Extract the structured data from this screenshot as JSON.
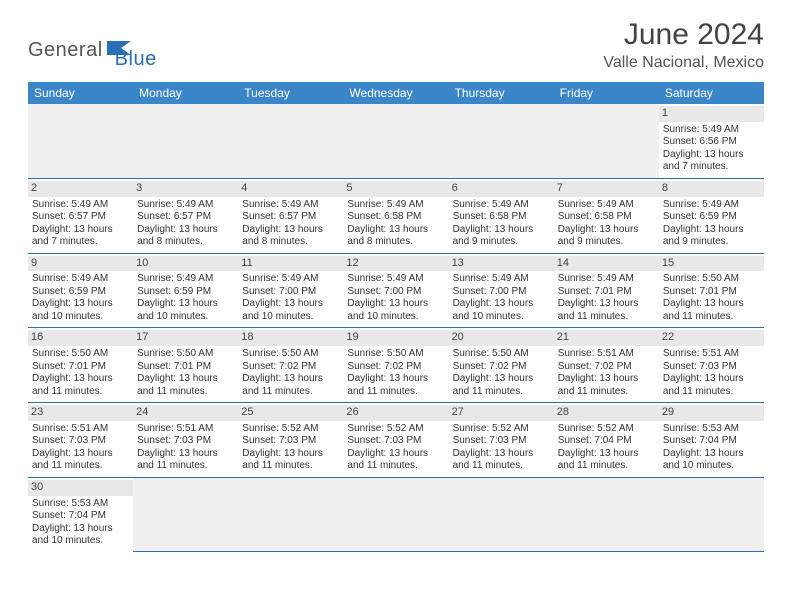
{
  "logo": {
    "text1": "General",
    "text2": "Blue",
    "icon_color": "#2a6db8"
  },
  "title": "June 2024",
  "location": "Valle Nacional, Mexico",
  "colors": {
    "header_bg": "#3b86c8",
    "header_text": "#ffffff",
    "border": "#2a6db8",
    "daybar_bg": "#e8e8e8",
    "empty_bg": "#f0f0f0",
    "text": "#333333"
  },
  "weekdays": [
    "Sunday",
    "Monday",
    "Tuesday",
    "Wednesday",
    "Thursday",
    "Friday",
    "Saturday"
  ],
  "weeks": [
    [
      null,
      null,
      null,
      null,
      null,
      null,
      {
        "day": "1",
        "sunrise": "Sunrise: 5:49 AM",
        "sunset": "Sunset: 6:56 PM",
        "daylight1": "Daylight: 13 hours",
        "daylight2": "and 7 minutes."
      }
    ],
    [
      {
        "day": "2",
        "sunrise": "Sunrise: 5:49 AM",
        "sunset": "Sunset: 6:57 PM",
        "daylight1": "Daylight: 13 hours",
        "daylight2": "and 7 minutes."
      },
      {
        "day": "3",
        "sunrise": "Sunrise: 5:49 AM",
        "sunset": "Sunset: 6:57 PM",
        "daylight1": "Daylight: 13 hours",
        "daylight2": "and 8 minutes."
      },
      {
        "day": "4",
        "sunrise": "Sunrise: 5:49 AM",
        "sunset": "Sunset: 6:57 PM",
        "daylight1": "Daylight: 13 hours",
        "daylight2": "and 8 minutes."
      },
      {
        "day": "5",
        "sunrise": "Sunrise: 5:49 AM",
        "sunset": "Sunset: 6:58 PM",
        "daylight1": "Daylight: 13 hours",
        "daylight2": "and 8 minutes."
      },
      {
        "day": "6",
        "sunrise": "Sunrise: 5:49 AM",
        "sunset": "Sunset: 6:58 PM",
        "daylight1": "Daylight: 13 hours",
        "daylight2": "and 9 minutes."
      },
      {
        "day": "7",
        "sunrise": "Sunrise: 5:49 AM",
        "sunset": "Sunset: 6:58 PM",
        "daylight1": "Daylight: 13 hours",
        "daylight2": "and 9 minutes."
      },
      {
        "day": "8",
        "sunrise": "Sunrise: 5:49 AM",
        "sunset": "Sunset: 6:59 PM",
        "daylight1": "Daylight: 13 hours",
        "daylight2": "and 9 minutes."
      }
    ],
    [
      {
        "day": "9",
        "sunrise": "Sunrise: 5:49 AM",
        "sunset": "Sunset: 6:59 PM",
        "daylight1": "Daylight: 13 hours",
        "daylight2": "and 10 minutes."
      },
      {
        "day": "10",
        "sunrise": "Sunrise: 5:49 AM",
        "sunset": "Sunset: 6:59 PM",
        "daylight1": "Daylight: 13 hours",
        "daylight2": "and 10 minutes."
      },
      {
        "day": "11",
        "sunrise": "Sunrise: 5:49 AM",
        "sunset": "Sunset: 7:00 PM",
        "daylight1": "Daylight: 13 hours",
        "daylight2": "and 10 minutes."
      },
      {
        "day": "12",
        "sunrise": "Sunrise: 5:49 AM",
        "sunset": "Sunset: 7:00 PM",
        "daylight1": "Daylight: 13 hours",
        "daylight2": "and 10 minutes."
      },
      {
        "day": "13",
        "sunrise": "Sunrise: 5:49 AM",
        "sunset": "Sunset: 7:00 PM",
        "daylight1": "Daylight: 13 hours",
        "daylight2": "and 10 minutes."
      },
      {
        "day": "14",
        "sunrise": "Sunrise: 5:49 AM",
        "sunset": "Sunset: 7:01 PM",
        "daylight1": "Daylight: 13 hours",
        "daylight2": "and 11 minutes."
      },
      {
        "day": "15",
        "sunrise": "Sunrise: 5:50 AM",
        "sunset": "Sunset: 7:01 PM",
        "daylight1": "Daylight: 13 hours",
        "daylight2": "and 11 minutes."
      }
    ],
    [
      {
        "day": "16",
        "sunrise": "Sunrise: 5:50 AM",
        "sunset": "Sunset: 7:01 PM",
        "daylight1": "Daylight: 13 hours",
        "daylight2": "and 11 minutes."
      },
      {
        "day": "17",
        "sunrise": "Sunrise: 5:50 AM",
        "sunset": "Sunset: 7:01 PM",
        "daylight1": "Daylight: 13 hours",
        "daylight2": "and 11 minutes."
      },
      {
        "day": "18",
        "sunrise": "Sunrise: 5:50 AM",
        "sunset": "Sunset: 7:02 PM",
        "daylight1": "Daylight: 13 hours",
        "daylight2": "and 11 minutes."
      },
      {
        "day": "19",
        "sunrise": "Sunrise: 5:50 AM",
        "sunset": "Sunset: 7:02 PM",
        "daylight1": "Daylight: 13 hours",
        "daylight2": "and 11 minutes."
      },
      {
        "day": "20",
        "sunrise": "Sunrise: 5:50 AM",
        "sunset": "Sunset: 7:02 PM",
        "daylight1": "Daylight: 13 hours",
        "daylight2": "and 11 minutes."
      },
      {
        "day": "21",
        "sunrise": "Sunrise: 5:51 AM",
        "sunset": "Sunset: 7:02 PM",
        "daylight1": "Daylight: 13 hours",
        "daylight2": "and 11 minutes."
      },
      {
        "day": "22",
        "sunrise": "Sunrise: 5:51 AM",
        "sunset": "Sunset: 7:03 PM",
        "daylight1": "Daylight: 13 hours",
        "daylight2": "and 11 minutes."
      }
    ],
    [
      {
        "day": "23",
        "sunrise": "Sunrise: 5:51 AM",
        "sunset": "Sunset: 7:03 PM",
        "daylight1": "Daylight: 13 hours",
        "daylight2": "and 11 minutes."
      },
      {
        "day": "24",
        "sunrise": "Sunrise: 5:51 AM",
        "sunset": "Sunset: 7:03 PM",
        "daylight1": "Daylight: 13 hours",
        "daylight2": "and 11 minutes."
      },
      {
        "day": "25",
        "sunrise": "Sunrise: 5:52 AM",
        "sunset": "Sunset: 7:03 PM",
        "daylight1": "Daylight: 13 hours",
        "daylight2": "and 11 minutes."
      },
      {
        "day": "26",
        "sunrise": "Sunrise: 5:52 AM",
        "sunset": "Sunset: 7:03 PM",
        "daylight1": "Daylight: 13 hours",
        "daylight2": "and 11 minutes."
      },
      {
        "day": "27",
        "sunrise": "Sunrise: 5:52 AM",
        "sunset": "Sunset: 7:03 PM",
        "daylight1": "Daylight: 13 hours",
        "daylight2": "and 11 minutes."
      },
      {
        "day": "28",
        "sunrise": "Sunrise: 5:52 AM",
        "sunset": "Sunset: 7:04 PM",
        "daylight1": "Daylight: 13 hours",
        "daylight2": "and 11 minutes."
      },
      {
        "day": "29",
        "sunrise": "Sunrise: 5:53 AM",
        "sunset": "Sunset: 7:04 PM",
        "daylight1": "Daylight: 13 hours",
        "daylight2": "and 10 minutes."
      }
    ],
    [
      {
        "day": "30",
        "sunrise": "Sunrise: 5:53 AM",
        "sunset": "Sunset: 7:04 PM",
        "daylight1": "Daylight: 13 hours",
        "daylight2": "and 10 minutes."
      },
      null,
      null,
      null,
      null,
      null,
      null
    ]
  ]
}
